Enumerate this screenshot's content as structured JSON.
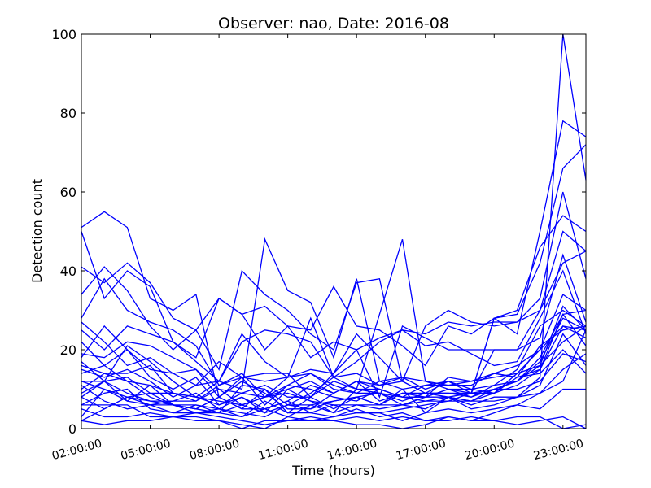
{
  "chart_data": {
    "type": "line",
    "title": "Observer: nao, Date: 2016-08",
    "xlabel": "Time (hours)",
    "ylabel": "Detection count",
    "x": [
      "02:00:00",
      "03:00:00",
      "04:00:00",
      "05:00:00",
      "06:00:00",
      "07:00:00",
      "08:00:00",
      "09:00:00",
      "10:00:00",
      "11:00:00",
      "12:00:00",
      "13:00:00",
      "14:00:00",
      "15:00:00",
      "16:00:00",
      "17:00:00",
      "18:00:00",
      "19:00:00",
      "20:00:00",
      "21:00:00",
      "22:00:00",
      "23:00:00",
      "24:00:00"
    ],
    "xtick_labels": [
      "02:00:00",
      "05:00:00",
      "08:00:00",
      "11:00:00",
      "14:00:00",
      "17:00:00",
      "20:00:00",
      "23:00:00"
    ],
    "ytick_labels": [
      "0",
      "20",
      "40",
      "60",
      "80",
      "100"
    ],
    "xlim": [
      0,
      22
    ],
    "ylim": [
      0,
      100
    ],
    "color": "#0000ff",
    "grid": false,
    "series": [
      {
        "values": [
          51,
          55,
          51,
          33,
          30,
          34,
          8,
          5,
          10,
          4,
          8,
          5,
          8,
          6,
          10,
          4,
          8,
          5,
          6,
          8,
          13,
          100,
          63
        ]
      },
      {
        "values": [
          50,
          33,
          40,
          36,
          22,
          17,
          12,
          10,
          48,
          35,
          32,
          18,
          38,
          12,
          13,
          10,
          12,
          9,
          28,
          24,
          50,
          78,
          74
        ]
      },
      {
        "values": [
          41,
          37,
          42,
          37,
          28,
          25,
          15,
          40,
          34,
          30,
          24,
          20,
          37,
          38,
          12,
          9,
          9,
          9,
          28,
          29,
          42,
          66,
          72
        ]
      },
      {
        "values": [
          28,
          38,
          30,
          27,
          25,
          21,
          11,
          14,
          8,
          13,
          15,
          14,
          24,
          18,
          12,
          26,
          30,
          27,
          26,
          27,
          33,
          60,
          38
        ]
      },
      {
        "values": [
          34,
          41,
          35,
          26,
          20,
          25,
          33,
          29,
          31,
          26,
          18,
          22,
          20,
          23,
          25,
          24,
          27,
          26,
          27,
          27,
          30,
          42,
          45
        ]
      },
      {
        "values": [
          25,
          20,
          26,
          24,
          22,
          18,
          33,
          29,
          20,
          26,
          25,
          36,
          26,
          25,
          21,
          16,
          26,
          24,
          28,
          30,
          46,
          54,
          50
        ]
      },
      {
        "values": [
          17,
          12,
          21,
          17,
          12,
          8,
          12,
          22,
          25,
          24,
          22,
          13,
          10,
          29,
          48,
          12,
          10,
          9,
          20,
          20,
          23,
          44,
          27
        ]
      },
      {
        "values": [
          15,
          13,
          15,
          12,
          8,
          11,
          17,
          13,
          14,
          14,
          8,
          14,
          20,
          8,
          26,
          23,
          20,
          20,
          20,
          20,
          30,
          50,
          45
        ]
      },
      {
        "values": [
          18,
          26,
          20,
          15,
          14,
          11,
          12,
          24,
          17,
          13,
          28,
          13,
          17,
          22,
          25,
          21,
          22,
          19,
          16,
          17,
          28,
          40,
          24
        ]
      },
      {
        "values": [
          27,
          22,
          16,
          18,
          14,
          15,
          8,
          13,
          6,
          11,
          10,
          8,
          7,
          10,
          8,
          11,
          12,
          10,
          9,
          14,
          16,
          22,
          26
        ]
      },
      {
        "values": [
          16,
          14,
          14,
          16,
          9,
          8,
          7,
          6,
          4,
          10,
          7,
          4,
          10,
          9,
          6,
          8,
          10,
          8,
          11,
          15,
          26,
          30,
          26
        ]
      },
      {
        "values": [
          19,
          18,
          22,
          21,
          18,
          15,
          10,
          9,
          8,
          10,
          12,
          9,
          12,
          7,
          9,
          8,
          13,
          12,
          14,
          16,
          20,
          26,
          25
        ]
      },
      {
        "values": [
          22,
          16,
          20,
          13,
          10,
          13,
          6,
          8,
          4,
          6,
          5,
          7,
          8,
          6,
          6,
          5,
          8,
          7,
          10,
          12,
          18,
          29,
          21
        ]
      },
      {
        "values": [
          14,
          16,
          12,
          11,
          9,
          7,
          10,
          6,
          8,
          11,
          14,
          11,
          9,
          12,
          10,
          11,
          11,
          12,
          13,
          14,
          20,
          34,
          30
        ]
      },
      {
        "values": [
          12,
          12,
          13,
          9,
          9,
          8,
          6,
          9,
          11,
          8,
          8,
          12,
          10,
          10,
          8,
          8,
          8,
          9,
          10,
          12,
          16,
          31,
          25
        ]
      },
      {
        "values": [
          10,
          14,
          12,
          8,
          6,
          5,
          8,
          5,
          5,
          7,
          11,
          9,
          12,
          10,
          8,
          8,
          10,
          10,
          11,
          12,
          17,
          28,
          25
        ]
      },
      {
        "values": [
          8,
          5,
          8,
          7,
          7,
          7,
          11,
          13,
          12,
          13,
          14,
          10,
          9,
          9,
          8,
          7,
          7,
          9,
          9,
          11,
          15,
          26,
          23
        ]
      },
      {
        "values": [
          9,
          12,
          7,
          6,
          6,
          5,
          8,
          12,
          9,
          5,
          5,
          9,
          12,
          11,
          12,
          9,
          8,
          7,
          9,
          13,
          15,
          29,
          30
        ]
      },
      {
        "values": [
          12,
          10,
          7,
          11,
          6,
          5,
          4,
          11,
          10,
          6,
          9,
          13,
          14,
          11,
          13,
          12,
          11,
          11,
          14,
          13,
          21,
          25,
          26
        ]
      },
      {
        "values": [
          8,
          12,
          9,
          7,
          6,
          6,
          5,
          8,
          5,
          3,
          6,
          4,
          6,
          6,
          9,
          9,
          12,
          12,
          14,
          13,
          14,
          20,
          14
        ]
      },
      {
        "values": [
          6,
          9,
          10,
          5,
          4,
          6,
          4,
          6,
          8,
          9,
          7,
          6,
          4,
          4,
          5,
          6,
          7,
          7,
          7,
          8,
          9,
          15,
          19
        ]
      },
      {
        "values": [
          11,
          7,
          5,
          6,
          4,
          4,
          5,
          4,
          3,
          6,
          6,
          7,
          8,
          9,
          7,
          9,
          9,
          8,
          10,
          10,
          12,
          19,
          17
        ]
      },
      {
        "values": [
          3,
          10,
          8,
          6,
          7,
          9,
          5,
          3,
          5,
          7,
          4,
          6,
          6,
          5,
          6,
          7,
          8,
          6,
          8,
          8,
          11,
          24,
          16
        ]
      },
      {
        "values": [
          2,
          5,
          8,
          9,
          6,
          4,
          4,
          3,
          7,
          4,
          4,
          3,
          4,
          4,
          2,
          4,
          5,
          4,
          5,
          6,
          9,
          12,
          25
        ]
      },
      {
        "values": [
          6,
          6,
          6,
          3,
          3,
          4,
          3,
          2,
          1,
          2,
          2,
          3,
          5,
          3,
          4,
          2,
          3,
          2,
          4,
          6,
          5,
          10,
          10
        ]
      },
      {
        "values": [
          5,
          3,
          3,
          4,
          3,
          3,
          2,
          1,
          0,
          3,
          2,
          2,
          3,
          2,
          3,
          2,
          2,
          3,
          2,
          3,
          3,
          0,
          1
        ]
      },
      {
        "values": [
          2,
          1,
          2,
          2,
          3,
          2,
          2,
          0,
          2,
          2,
          3,
          2,
          1,
          1,
          0,
          1,
          3,
          2,
          2,
          1,
          2,
          3,
          0
        ]
      }
    ]
  }
}
